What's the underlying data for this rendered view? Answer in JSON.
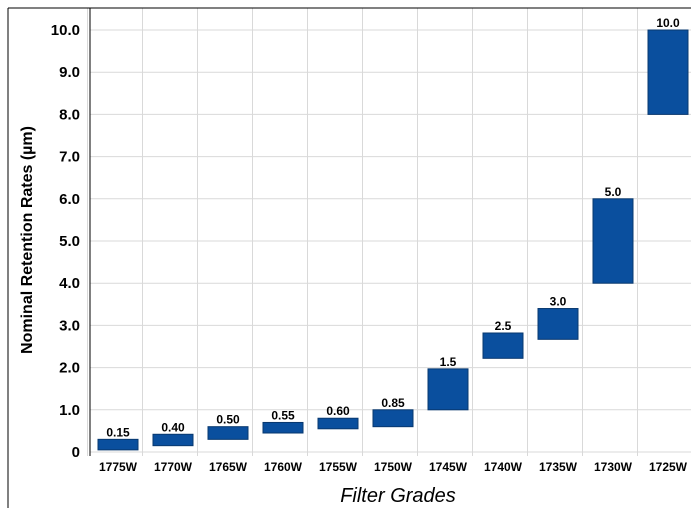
{
  "chart_data": {
    "type": "bar",
    "subtype": "floating-range",
    "xlabel": "Filter Grades",
    "ylabel": "Nominal Retention Rates (µm)",
    "y_ticks": [
      "0",
      "1.0",
      "2.0",
      "3.0",
      "4.0",
      "5.0",
      "6.0",
      "7.0",
      "8.0",
      "9.0",
      "10.0"
    ],
    "ylim": [
      0,
      10.0
    ],
    "grid": true,
    "legend": "none",
    "bar_color": "#0a4f9e",
    "categories": [
      "1775W",
      "1770W",
      "1765W",
      "1760W",
      "1755W",
      "1750W",
      "1745W",
      "1740W",
      "1735W",
      "1730W",
      "1725W"
    ],
    "series": [
      {
        "ranges": [
          [
            0.05,
            0.3
          ],
          [
            0.15,
            0.42
          ],
          [
            0.3,
            0.6
          ],
          [
            0.45,
            0.7
          ],
          [
            0.55,
            0.8
          ],
          [
            0.6,
            1.0
          ],
          [
            1.0,
            1.97
          ],
          [
            2.22,
            2.82
          ],
          [
            2.67,
            3.4
          ],
          [
            4.0,
            6.0
          ],
          [
            8.0,
            10.0
          ]
        ],
        "labels": [
          "0.15",
          "0.40",
          "0.50",
          "0.55",
          "0.60",
          "0.85",
          "1.5",
          "2.5",
          "3.0",
          "5.0",
          "10.0"
        ]
      }
    ]
  }
}
